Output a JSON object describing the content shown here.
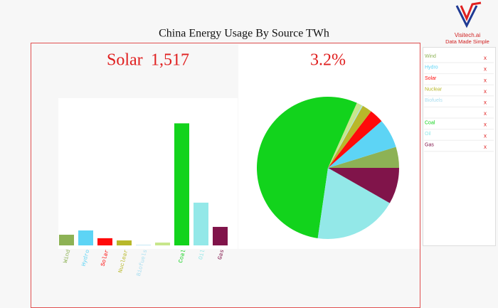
{
  "page_title": "China Energy Usage By Source TWh",
  "logo": {
    "brand": "Visitech.ai",
    "tagline": "Data Made Simple"
  },
  "highlight": {
    "category": "Solar",
    "value": {
      "value": 1517,
      "label": "1,517"
    },
    "share": {
      "value": 3.2,
      "label": "3.2%"
    }
  },
  "legend": {
    "remove_label": "x"
  },
  "chart_data": [
    {
      "type": "bar",
      "categories": [
        "Wind",
        "Hydro",
        "Solar",
        "Nuclear",
        "Biofuels",
        null,
        "Coal",
        "Oil",
        "Gas"
      ],
      "values": [
        2250,
        3150,
        1517,
        1050,
        100,
        600,
        25700,
        9000,
        3900
      ],
      "colors": [
        "#8db255",
        "#5dd4f5",
        "#ff0a0a",
        "#b8b82a",
        "#a9def0",
        "#c8e68c",
        "#12d31c",
        "#93e8e8",
        "#80144a"
      ],
      "ylim": [
        0,
        31000
      ]
    },
    {
      "type": "pie",
      "categories": [
        "Wind",
        "Hydro",
        "Solar",
        "Nuclear",
        "Biofuels",
        null,
        "Coal",
        "Oil",
        "Gas"
      ],
      "values": [
        2250,
        3150,
        1517,
        1050,
        100,
        600,
        25700,
        9000,
        3900
      ],
      "colors": [
        "#8db255",
        "#5dd4f5",
        "#ff0a0a",
        "#b8b82a",
        "#a9def0",
        "#c8e68c",
        "#12d31c",
        "#93e8e8",
        "#80144a"
      ]
    }
  ]
}
